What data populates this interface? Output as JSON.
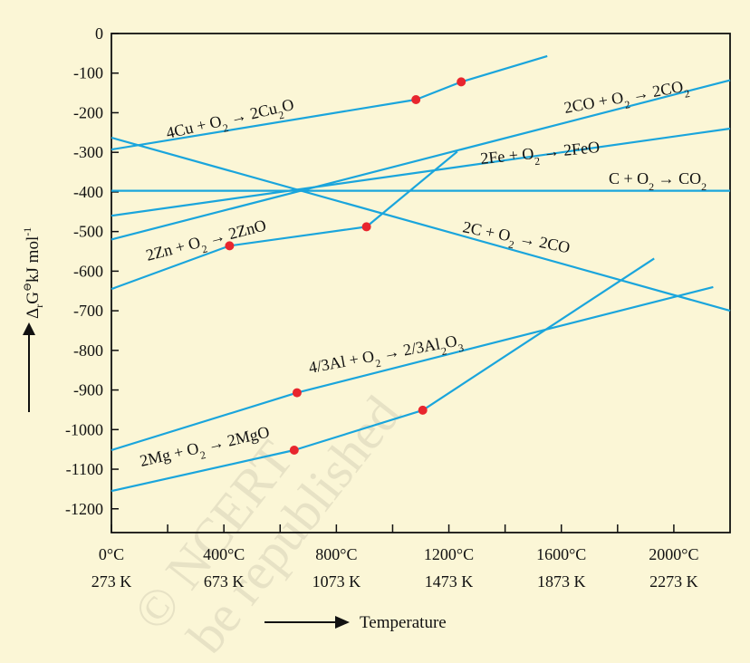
{
  "chart_data": {
    "type": "line",
    "xlabel": "Temperature",
    "ylabel": "ΔrG⊖ kJ mol⁻¹",
    "xlim": [
      0,
      2200
    ],
    "ylim": [
      -1260,
      0
    ],
    "y_ticks": [
      0,
      -100,
      -200,
      -300,
      -400,
      -500,
      -600,
      -700,
      -800,
      -900,
      -1000,
      -1100,
      -1200
    ],
    "y_tick_labels": [
      "0",
      "-100",
      "-200",
      "-300",
      "-400",
      "-500",
      "-600",
      "-700",
      "-800",
      "-900",
      "-1000",
      "-1100",
      "-1200"
    ],
    "x_ticks_labeled": [
      {
        "x": 0,
        "celsius": "0°C",
        "kelvin": "273 K"
      },
      {
        "x": 400,
        "celsius": "400°C",
        "kelvin": "673 K"
      },
      {
        "x": 800,
        "celsius": "800°C",
        "kelvin": "1073 K"
      },
      {
        "x": 1200,
        "celsius": "1200°C",
        "kelvin": "1473 K"
      },
      {
        "x": 1600,
        "celsius": "1600°C",
        "kelvin": "1873 K"
      },
      {
        "x": 2000,
        "celsius": "2000°C",
        "kelvin": "2273 K"
      }
    ],
    "x_minor_ticks": [
      200,
      600,
      1000,
      1400,
      1800
    ],
    "grid": false,
    "line_color": "#1aa5dc",
    "marker_color": "#e8262e",
    "series": [
      {
        "name": "4Cu + O2 → 2Cu2O",
        "points": [
          [
            0,
            -293
          ],
          [
            1083,
            -167
          ],
          [
            1244,
            -122
          ],
          [
            1550,
            -57
          ]
        ],
        "markers": [
          [
            1083,
            -167
          ],
          [
            1244,
            -122
          ]
        ]
      },
      {
        "name": "2CO + O2 → 2CO2",
        "points": [
          [
            0,
            -520
          ],
          [
            2200,
            -118
          ]
        ],
        "markers": []
      },
      {
        "name": "2Fe + O2 → 2FeO",
        "points": [
          [
            0,
            -460
          ],
          [
            2200,
            -240
          ]
        ],
        "markers": []
      },
      {
        "name": "C + O2 → CO2",
        "points": [
          [
            0,
            -397
          ],
          [
            2200,
            -397
          ]
        ],
        "markers": []
      },
      {
        "name": "2C + O2 → 2CO",
        "points": [
          [
            0,
            -263
          ],
          [
            2200,
            -700
          ]
        ],
        "markers": []
      },
      {
        "name": "2Zn + O2 → 2ZnO",
        "points": [
          [
            0,
            -645
          ],
          [
            420,
            -536
          ],
          [
            907,
            -488
          ],
          [
            1230,
            -298
          ]
        ],
        "markers": [
          [
            420,
            -536
          ],
          [
            907,
            -488
          ]
        ]
      },
      {
        "name": "4/3Al + O2 → 2/3Al2O3",
        "points": [
          [
            0,
            -1052
          ],
          [
            660,
            -907
          ],
          [
            2140,
            -640
          ]
        ],
        "markers": [
          [
            660,
            -907
          ]
        ]
      },
      {
        "name": "2Mg + O2 → 2MgO",
        "points": [
          [
            0,
            -1155
          ],
          [
            650,
            -1052
          ],
          [
            1107,
            -951
          ],
          [
            1930,
            -568
          ]
        ],
        "markers": [
          [
            650,
            -1052
          ],
          [
            1107,
            -951
          ]
        ]
      }
    ]
  },
  "labels": [
    {
      "name": "cu2o-label",
      "rich": [
        {
          "t": "4Cu + O"
        },
        {
          "t": "2",
          "s": "sub"
        },
        {
          "t": " → 2Cu"
        },
        {
          "t": "2",
          "s": "sub"
        },
        {
          "t": "O"
        }
      ]
    },
    {
      "name": "co2-from-co-label",
      "rich": [
        {
          "t": "2CO + O"
        },
        {
          "t": "2",
          "s": "sub"
        },
        {
          "t": " → 2CO"
        },
        {
          "t": "2",
          "s": "sub"
        }
      ]
    },
    {
      "name": "feo-label",
      "rich": [
        {
          "t": "2Fe + O"
        },
        {
          "t": "2",
          "s": "sub"
        },
        {
          "t": " → 2FeO"
        }
      ]
    },
    {
      "name": "co2-label",
      "rich": [
        {
          "t": "C + O"
        },
        {
          "t": "2",
          "s": "sub"
        },
        {
          "t": " → CO"
        },
        {
          "t": "2",
          "s": "sub"
        }
      ]
    },
    {
      "name": "zno-label",
      "rich": [
        {
          "t": "2Zn + O"
        },
        {
          "t": "2",
          "s": "sub"
        },
        {
          "t": " → 2ZnO"
        }
      ]
    },
    {
      "name": "co-label",
      "rich": [
        {
          "t": "2C + O"
        },
        {
          "t": "2",
          "s": "sub"
        },
        {
          "t": " → 2CO"
        }
      ]
    },
    {
      "name": "al2o3-label",
      "rich": [
        {
          "t": "4/3Al + O"
        },
        {
          "t": "2",
          "s": "sub"
        },
        {
          "t": " → 2/3Al"
        },
        {
          "t": "2",
          "s": "sub"
        },
        {
          "t": "O"
        },
        {
          "t": "3",
          "s": "sub"
        }
      ]
    },
    {
      "name": "mgo-label",
      "rich": [
        {
          "t": "2Mg + O"
        },
        {
          "t": "2",
          "s": "sub"
        },
        {
          "t": " → 2MgO"
        }
      ]
    }
  ],
  "watermark": {
    "line1": "© NCERT",
    "line2": "be republished"
  }
}
